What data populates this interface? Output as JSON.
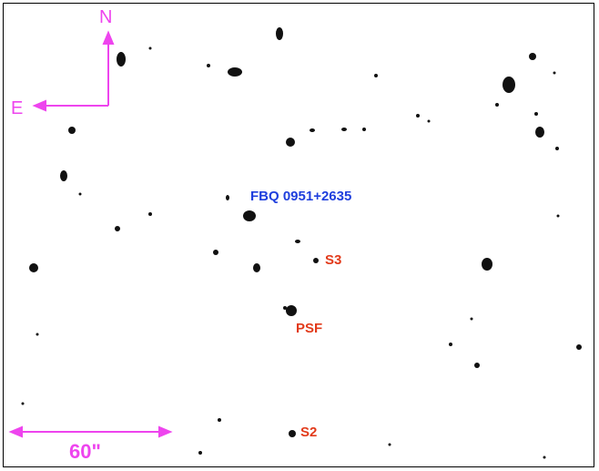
{
  "colors": {
    "annotation": "#ee44ee",
    "target": "#1f3fdd",
    "reference": "#e23a1a",
    "star": "#111111",
    "frame": "#000000"
  },
  "compass": {
    "north": "N",
    "east": "E"
  },
  "target": {
    "name": "FBQ 0951+2635"
  },
  "references": {
    "s3": "S3",
    "psf": "PSF",
    "s2": "S2"
  },
  "scale_bar": {
    "label": "60\""
  }
}
